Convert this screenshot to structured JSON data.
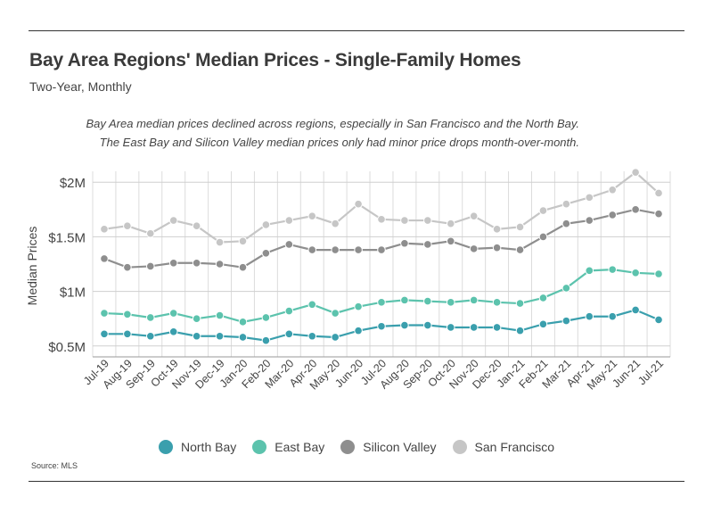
{
  "header": {
    "title": "Bay Area Regions' Median Prices - Single-Family Homes",
    "subtitle": "Two-Year, Monthly"
  },
  "annotation": "Bay Area median prices declined across regions, especially in San Francisco and the North Bay. The East Bay and Silicon Valley median prices only had minor price drops month-over-month.",
  "source": "Source:  MLS",
  "chart_data": {
    "type": "line",
    "ylabel": "Median Prices",
    "xlabel": "",
    "ylim": [
      400000,
      2100000
    ],
    "y_ticks": [
      500000,
      1000000,
      1500000,
      2000000
    ],
    "y_tick_labels": [
      "$0.5M",
      "$1M",
      "$1.5M",
      "$2M"
    ],
    "grid": true,
    "legend_position": "bottom",
    "categories": [
      "Jul-19",
      "Aug-19",
      "Sep-19",
      "Oct-19",
      "Nov-19",
      "Dec-19",
      "Jan-20",
      "Feb-20",
      "Mar-20",
      "Apr-20",
      "May-20",
      "Jun-20",
      "Jul-20",
      "Aug-20",
      "Sep-20",
      "Oct-20",
      "Nov-20",
      "Dec-20",
      "Jan-21",
      "Feb-21",
      "Mar-21",
      "Apr-21",
      "May-21",
      "Jun-21",
      "Jul-21"
    ],
    "series": [
      {
        "name": "North Bay",
        "color": "#3a9fad",
        "values": [
          610000,
          610000,
          590000,
          630000,
          590000,
          590000,
          580000,
          550000,
          610000,
          590000,
          580000,
          640000,
          680000,
          690000,
          690000,
          670000,
          670000,
          670000,
          640000,
          700000,
          730000,
          770000,
          770000,
          830000,
          740000
        ]
      },
      {
        "name": "East Bay",
        "color": "#5cc3ad",
        "values": [
          800000,
          790000,
          760000,
          800000,
          750000,
          780000,
          720000,
          760000,
          820000,
          880000,
          800000,
          860000,
          900000,
          920000,
          910000,
          900000,
          920000,
          900000,
          890000,
          940000,
          1030000,
          1190000,
          1200000,
          1170000,
          1160000
        ]
      },
      {
        "name": "Silicon Valley",
        "color": "#8e8e8e",
        "values": [
          1300000,
          1220000,
          1230000,
          1260000,
          1260000,
          1250000,
          1220000,
          1350000,
          1430000,
          1380000,
          1380000,
          1380000,
          1380000,
          1440000,
          1430000,
          1460000,
          1390000,
          1400000,
          1380000,
          1500000,
          1620000,
          1650000,
          1700000,
          1750000,
          1710000
        ]
      },
      {
        "name": "San Francisco",
        "color": "#c6c6c6",
        "values": [
          1570000,
          1600000,
          1530000,
          1650000,
          1600000,
          1450000,
          1460000,
          1610000,
          1650000,
          1690000,
          1620000,
          1800000,
          1660000,
          1650000,
          1650000,
          1620000,
          1690000,
          1570000,
          1590000,
          1740000,
          1800000,
          1860000,
          1930000,
          2090000,
          1900000
        ]
      }
    ]
  }
}
